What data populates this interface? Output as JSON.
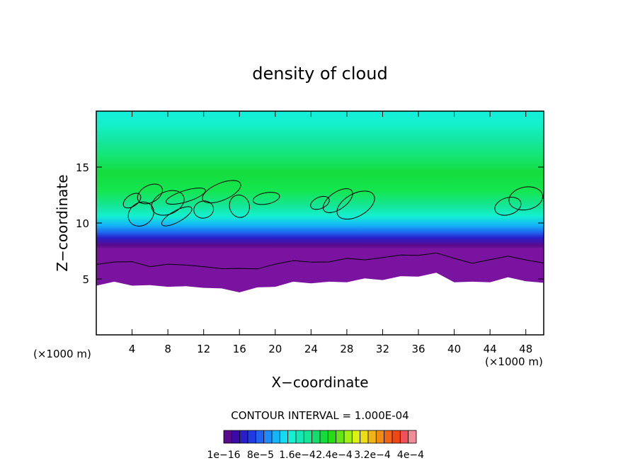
{
  "chart_data": {
    "type": "heatmap",
    "title": "density of cloud",
    "xlabel": "X−coordinate",
    "ylabel": "Z−coordinate",
    "x_unit": "(×1000 m)",
    "z_unit": "(×1000 m)",
    "xlim": [
      0,
      50
    ],
    "ylim": [
      0,
      20
    ],
    "x_ticks": [
      4,
      8,
      12,
      16,
      20,
      24,
      28,
      32,
      36,
      40,
      44,
      48
    ],
    "y_ticks": [
      5,
      10,
      15
    ],
    "contour_interval_text": "CONTOUR INTERVAL = 1.000E-04",
    "colorbar": {
      "colors": [
        "#5a0a8c",
        "#3a0aa8",
        "#2a1ec8",
        "#1e3ce6",
        "#1e64f0",
        "#1e8cf8",
        "#14b4f8",
        "#14dcf0",
        "#14f0d2",
        "#14e6b4",
        "#14e696",
        "#14dc6e",
        "#14dc3c",
        "#28dc14",
        "#64e614",
        "#a0f014",
        "#dcf014",
        "#f0dc14",
        "#f0b414",
        "#f08c14",
        "#f06414",
        "#f04614",
        "#f0505a",
        "#f08c96"
      ],
      "labels": [
        "1e−16",
        "8e−5",
        "1.6e−4",
        "2.4e−4",
        "3.2e−4",
        "4e−4"
      ]
    },
    "band_thresholds": [
      {
        "x": 0,
        "z": 4.5
      },
      {
        "x": 2,
        "z": 4.6
      },
      {
        "x": 4,
        "z": 4.5
      },
      {
        "x": 6,
        "z": 4.3
      },
      {
        "x": 8,
        "z": 4.4
      },
      {
        "x": 10,
        "z": 4.2
      },
      {
        "x": 12,
        "z": 4.3
      },
      {
        "x": 14,
        "z": 4.0
      },
      {
        "x": 16,
        "z": 3.9
      },
      {
        "x": 18,
        "z": 4.1
      },
      {
        "x": 20,
        "z": 4.4
      },
      {
        "x": 22,
        "z": 4.6
      },
      {
        "x": 24,
        "z": 4.7
      },
      {
        "x": 26,
        "z": 4.6
      },
      {
        "x": 28,
        "z": 4.8
      },
      {
        "x": 30,
        "z": 4.9
      },
      {
        "x": 32,
        "z": 5.0
      },
      {
        "x": 34,
        "z": 5.1
      },
      {
        "x": 36,
        "z": 5.3
      },
      {
        "x": 38,
        "z": 5.4
      },
      {
        "x": 40,
        "z": 4.8
      },
      {
        "x": 42,
        "z": 4.6
      },
      {
        "x": 44,
        "z": 4.8
      },
      {
        "x": 46,
        "z": 5.0
      },
      {
        "x": 48,
        "z": 4.9
      },
      {
        "x": 50,
        "z": 4.5
      }
    ]
  }
}
